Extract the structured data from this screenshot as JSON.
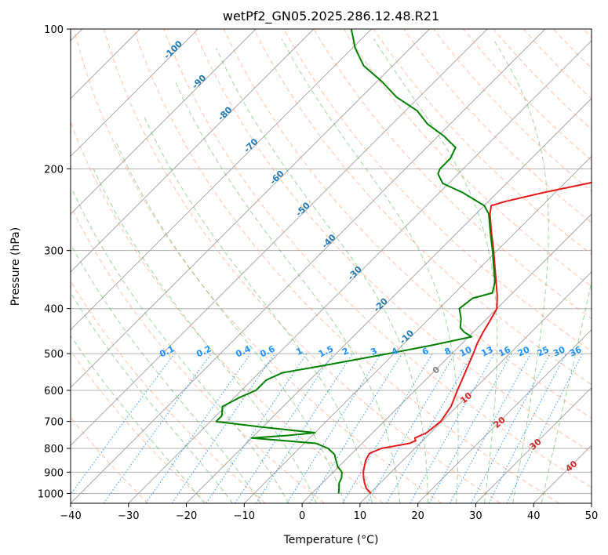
{
  "chart_data": {
    "type": "line",
    "subtype": "skew-t log-p diagram",
    "title": "wetPf2_GN05.2025.286.12.48.R21",
    "xlabel": "Temperature (°C)",
    "ylabel": "Pressure (hPa)",
    "xlim": [
      -40,
      50
    ],
    "ylim": [
      1050,
      100
    ],
    "yscale": "log",
    "x_ticks": [
      -40,
      -30,
      -20,
      -10,
      0,
      10,
      20,
      30,
      40,
      50
    ],
    "y_ticks": [
      100,
      200,
      300,
      400,
      500,
      600,
      700,
      800,
      900,
      1000
    ],
    "grid": true,
    "colors": {
      "temperature": "#e41a1c",
      "dewpoint": "#008000",
      "isotherm": "#808080",
      "dry_adiabat": "#ffa07a",
      "moist_adiabat": "#2ca02c",
      "mixing_ratio": "#1e90ff",
      "isotherm_label": "#1f77b4",
      "adiabat_label": "#d62728"
    },
    "series": [
      {
        "name": "temperature",
        "points": [
          {
            "p": 1000,
            "t": 10.2
          },
          {
            "p": 975,
            "t": 8.5
          },
          {
            "p": 950,
            "t": 7.3
          },
          {
            "p": 925,
            "t": 6.2
          },
          {
            "p": 900,
            "t": 5.2
          },
          {
            "p": 875,
            "t": 4.4
          },
          {
            "p": 850,
            "t": 3.6
          },
          {
            "p": 820,
            "t": 3.0
          },
          {
            "p": 800,
            "t": 4.2
          },
          {
            "p": 790,
            "t": 6.2
          },
          {
            "p": 780,
            "t": 8.2
          },
          {
            "p": 770,
            "t": 8.8
          },
          {
            "p": 760,
            "t": 8.2
          },
          {
            "p": 740,
            "t": 9.3
          },
          {
            "p": 700,
            "t": 9.8
          },
          {
            "p": 650,
            "t": 9.0
          },
          {
            "p": 600,
            "t": 7.3
          },
          {
            "p": 550,
            "t": 5.6
          },
          {
            "p": 500,
            "t": 3.7
          },
          {
            "p": 475,
            "t": 2.6
          },
          {
            "p": 450,
            "t": 1.7
          },
          {
            "p": 425,
            "t": 0.9
          },
          {
            "p": 400,
            "t": 0.0
          },
          {
            "p": 375,
            "t": -2.2
          },
          {
            "p": 350,
            "t": -4.8
          },
          {
            "p": 325,
            "t": -7.6
          },
          {
            "p": 300,
            "t": -10.6
          },
          {
            "p": 275,
            "t": -14.0
          },
          {
            "p": 250,
            "t": -17.6
          },
          {
            "p": 240,
            "t": -18.8
          },
          {
            "p": 235,
            "t": -17.0
          },
          {
            "p": 225,
            "t": -12.0
          },
          {
            "p": 215,
            "t": -6.0
          },
          {
            "p": 205,
            "t": -0.5
          },
          {
            "p": 200,
            "t": 1.0
          },
          {
            "p": 190,
            "t": 2.0
          },
          {
            "p": 180,
            "t": 2.5
          },
          {
            "p": 170,
            "t": 3.5
          },
          {
            "p": 160,
            "t": 5.2
          },
          {
            "p": 150,
            "t": 7.0
          },
          {
            "p": 140,
            "t": 9.3
          },
          {
            "p": 130,
            "t": 11.5
          },
          {
            "p": 120,
            "t": 14.8
          },
          {
            "p": 110,
            "t": 16.8
          },
          {
            "p": 100,
            "t": 18.8
          }
        ]
      },
      {
        "name": "dewpoint",
        "points": [
          {
            "p": 1000,
            "t": 4.6
          },
          {
            "p": 975,
            "t": 3.8
          },
          {
            "p": 950,
            "t": 2.9
          },
          {
            "p": 925,
            "t": 2.4
          },
          {
            "p": 900,
            "t": 1.5
          },
          {
            "p": 875,
            "t": -0.2
          },
          {
            "p": 850,
            "t": -1.5
          },
          {
            "p": 825,
            "t": -2.8
          },
          {
            "p": 800,
            "t": -5.0
          },
          {
            "p": 780,
            "t": -8.0
          },
          {
            "p": 760,
            "t": -20.0
          },
          {
            "p": 750,
            "t": -14.0
          },
          {
            "p": 740,
            "t": -10.0
          },
          {
            "p": 720,
            "t": -20.0
          },
          {
            "p": 700,
            "t": -29.0
          },
          {
            "p": 680,
            "t": -29.0
          },
          {
            "p": 650,
            "t": -30.5
          },
          {
            "p": 620,
            "t": -29.0
          },
          {
            "p": 600,
            "t": -27.5
          },
          {
            "p": 570,
            "t": -27.5
          },
          {
            "p": 550,
            "t": -26.0
          },
          {
            "p": 530,
            "t": -20.0
          },
          {
            "p": 500,
            "t": -11.0
          },
          {
            "p": 480,
            "t": -5.0
          },
          {
            "p": 460,
            "t": 0.5
          },
          {
            "p": 450,
            "t": -1.5
          },
          {
            "p": 440,
            "t": -3.0
          },
          {
            "p": 420,
            "t": -4.5
          },
          {
            "p": 400,
            "t": -6.5
          },
          {
            "p": 380,
            "t": -6.0
          },
          {
            "p": 370,
            "t": -3.5
          },
          {
            "p": 350,
            "t": -5.0
          },
          {
            "p": 325,
            "t": -7.8
          },
          {
            "p": 300,
            "t": -10.8
          },
          {
            "p": 275,
            "t": -14.2
          },
          {
            "p": 250,
            "t": -17.8
          },
          {
            "p": 240,
            "t": -20.0
          },
          {
            "p": 225,
            "t": -26.0
          },
          {
            "p": 215,
            "t": -31.0
          },
          {
            "p": 205,
            "t": -33.5
          },
          {
            "p": 200,
            "t": -34.0
          },
          {
            "p": 190,
            "t": -34.0
          },
          {
            "p": 180,
            "t": -35.0
          },
          {
            "p": 170,
            "t": -39.0
          },
          {
            "p": 160,
            "t": -44.0
          },
          {
            "p": 150,
            "t": -48.0
          },
          {
            "p": 140,
            "t": -54.0
          },
          {
            "p": 130,
            "t": -59.0
          },
          {
            "p": 120,
            "t": -65.0
          },
          {
            "p": 110,
            "t": -69.5
          },
          {
            "p": 100,
            "t": -73.5
          }
        ]
      }
    ],
    "isotherm_labels": [
      "-100",
      "-90",
      "-80",
      "-70",
      "-60",
      "-50",
      "-40",
      "-30",
      "-20",
      "-10"
    ],
    "isotherm_label_values": [
      -100,
      -90,
      -80,
      -70,
      -60,
      -50,
      -40,
      -30,
      -20,
      -10
    ],
    "mixing_ratio_labels": [
      "0.1",
      "0.2",
      "0.4",
      "0.6",
      "1",
      "1.5",
      "2",
      "3",
      "4",
      "6",
      "8",
      "10",
      "13",
      "16",
      "20",
      "25",
      "30",
      "36"
    ],
    "mixing_ratio_values": [
      0.1,
      0.2,
      0.4,
      0.6,
      1,
      1.5,
      2,
      3,
      4,
      6,
      8,
      10,
      13,
      16,
      20,
      25,
      30,
      36
    ],
    "adiabat_labels": [
      "0",
      "10",
      "20",
      "30",
      "40"
    ],
    "adiabat_label_values": [
      0,
      10,
      20,
      30,
      40
    ]
  }
}
